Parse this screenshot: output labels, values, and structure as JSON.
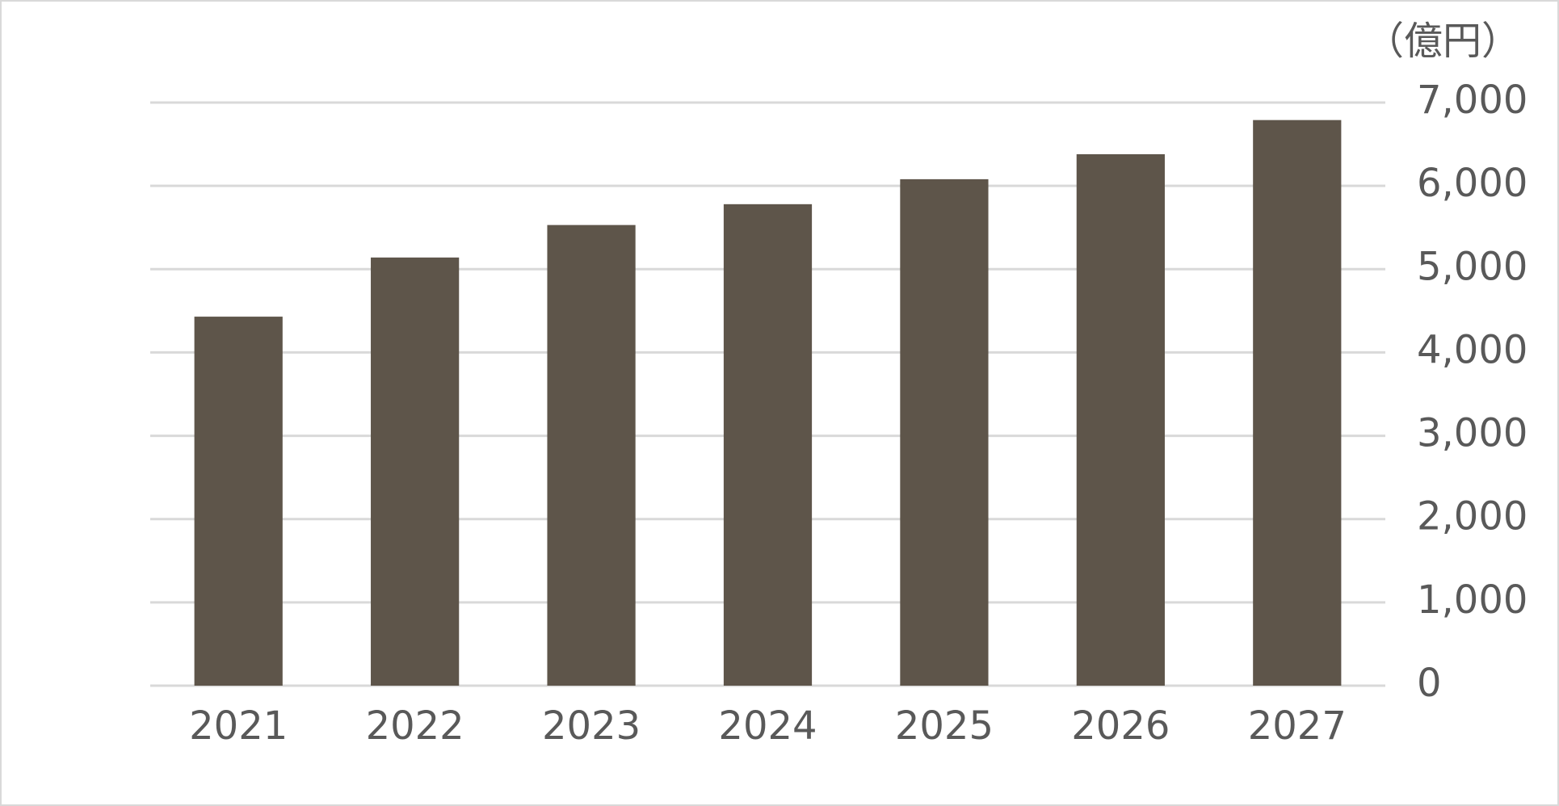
{
  "chart_data": {
    "type": "bar",
    "unit_label": "（億円）",
    "categories": [
      "2021",
      "2022",
      "2023",
      "2024",
      "2025",
      "2026",
      "2027"
    ],
    "values": [
      4430,
      5140,
      5530,
      5780,
      6080,
      6380,
      6790
    ],
    "color": "#5e554a",
    "ylim": [
      0,
      7000
    ],
    "yticks": [
      0,
      {
        "value": 1000,
        "label": "1,000"
      },
      {
        "value": 2000,
        "label": "2,000"
      },
      {
        "value": 3000,
        "label": "3,000"
      },
      {
        "value": 4000,
        "label": "4,000"
      },
      {
        "value": 5000,
        "label": "5,000"
      },
      {
        "value": 6000,
        "label": "6,000"
      },
      {
        "value": 7000,
        "label": "7,000"
      }
    ],
    "grid": true
  }
}
